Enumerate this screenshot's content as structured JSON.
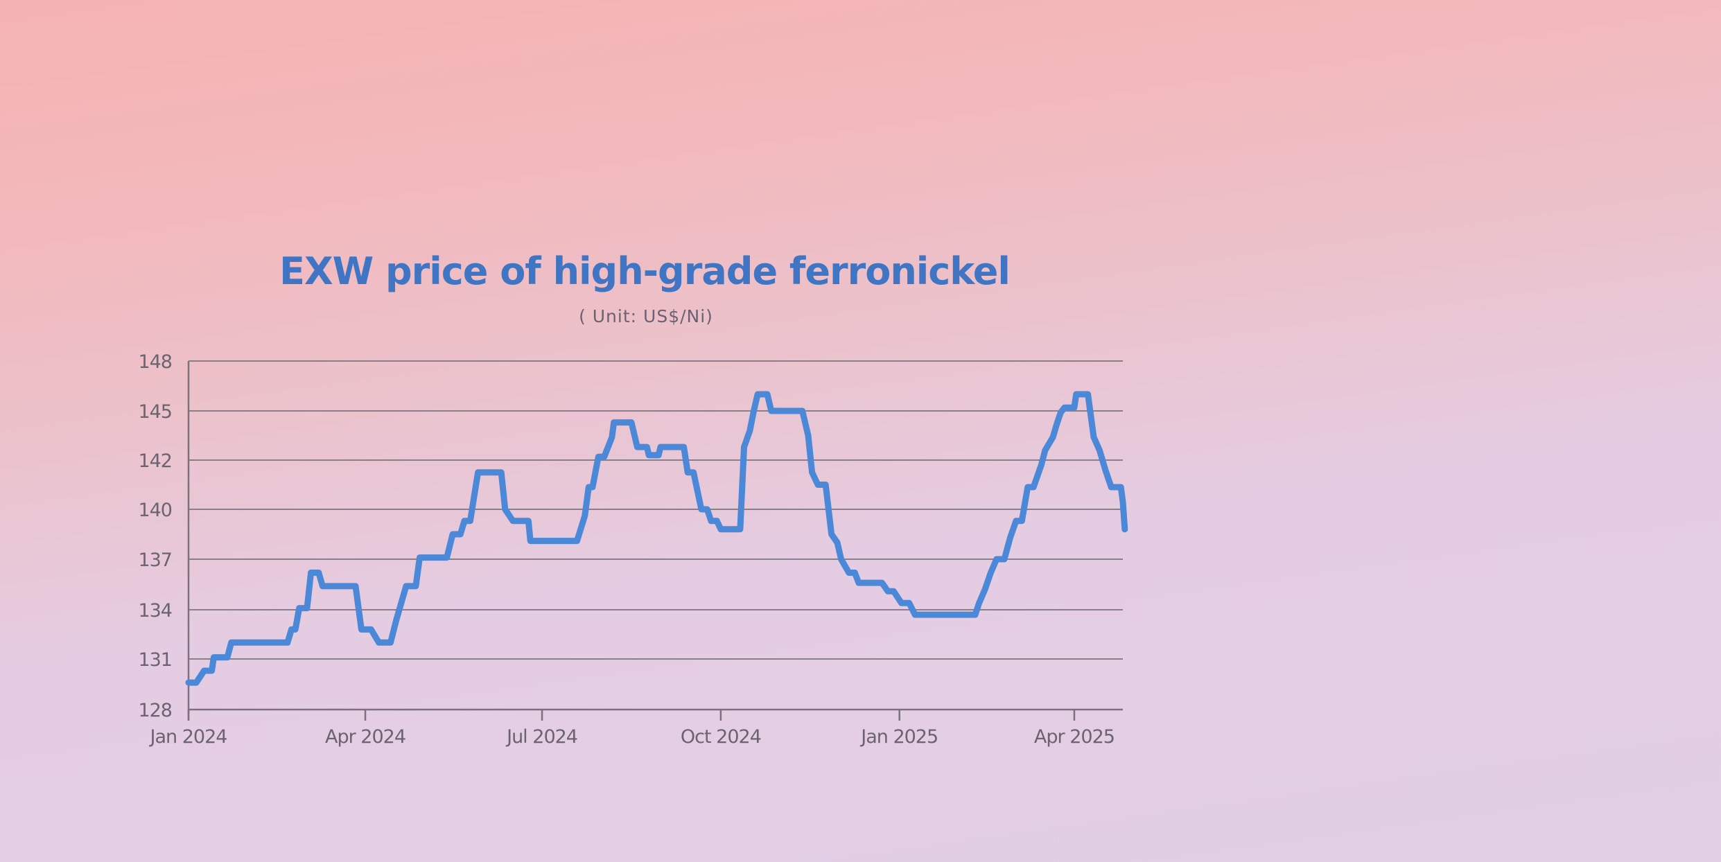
{
  "chart_data": {
    "type": "line",
    "title": "EXW price of high-grade ferronickel",
    "subtitle": "( Unit: US$/Ni)",
    "xlabel": "",
    "ylabel": "",
    "ylim": [
      128,
      148
    ],
    "yticks": [
      128,
      131,
      134,
      137,
      140,
      142,
      145,
      148
    ],
    "xrange": [
      "2024-01-01",
      "2025-04-26"
    ],
    "xticks": [
      {
        "date": "2024-01-01",
        "label": "Jan 2024"
      },
      {
        "date": "2024-04-01",
        "label": "Apr 2024"
      },
      {
        "date": "2024-07-01",
        "label": "Jul 2024"
      },
      {
        "date": "2024-10-01",
        "label": "Oct 2024"
      },
      {
        "date": "2025-01-01",
        "label": "Jan 2025"
      },
      {
        "date": "2025-04-01",
        "label": "Apr 2025"
      }
    ],
    "grid": true,
    "colors": {
      "line": "#4c88d8",
      "title": "#3f75c2"
    },
    "series": [
      {
        "points": [
          [
            "2024-01-01",
            129.6
          ],
          [
            "2024-01-05",
            129.6
          ],
          [
            "2024-01-09",
            130.3
          ],
          [
            "2024-01-13",
            130.3
          ],
          [
            "2024-01-14",
            131.1
          ],
          [
            "2024-01-21",
            131.1
          ],
          [
            "2024-01-23",
            132.0
          ],
          [
            "2024-02-17",
            132.0
          ],
          [
            "2024-02-21",
            132.0
          ],
          [
            "2024-02-23",
            132.8
          ],
          [
            "2024-02-25",
            132.8
          ],
          [
            "2024-02-27",
            134.1
          ],
          [
            "2024-03-02",
            134.1
          ],
          [
            "2024-03-04",
            136.2
          ],
          [
            "2024-03-08",
            136.2
          ],
          [
            "2024-03-10",
            135.4
          ],
          [
            "2024-03-27",
            135.4
          ],
          [
            "2024-03-30",
            132.8
          ],
          [
            "2024-04-04",
            132.8
          ],
          [
            "2024-04-08",
            132.0
          ],
          [
            "2024-04-14",
            132.0
          ],
          [
            "2024-04-17",
            133.4
          ],
          [
            "2024-04-20",
            134.6
          ],
          [
            "2024-04-22",
            135.4
          ],
          [
            "2024-04-27",
            135.4
          ],
          [
            "2024-04-29",
            137.1
          ],
          [
            "2024-05-13",
            137.1
          ],
          [
            "2024-05-16",
            138.5
          ],
          [
            "2024-05-20",
            138.5
          ],
          [
            "2024-05-22",
            139.3
          ],
          [
            "2024-05-25",
            139.3
          ],
          [
            "2024-05-29",
            141.5
          ],
          [
            "2024-06-10",
            141.5
          ],
          [
            "2024-06-12",
            140.0
          ],
          [
            "2024-06-16",
            139.3
          ],
          [
            "2024-06-24",
            139.3
          ],
          [
            "2024-06-25",
            138.1
          ],
          [
            "2024-07-19",
            138.1
          ],
          [
            "2024-07-23",
            139.6
          ],
          [
            "2024-07-25",
            140.9
          ],
          [
            "2024-07-27",
            140.9
          ],
          [
            "2024-07-30",
            142.2
          ],
          [
            "2024-08-02",
            142.2
          ],
          [
            "2024-08-06",
            143.4
          ],
          [
            "2024-08-07",
            144.3
          ],
          [
            "2024-08-16",
            144.3
          ],
          [
            "2024-08-19",
            142.8
          ],
          [
            "2024-08-24",
            142.8
          ],
          [
            "2024-08-25",
            142.3
          ],
          [
            "2024-08-30",
            142.3
          ],
          [
            "2024-08-31",
            142.8
          ],
          [
            "2024-09-12",
            142.8
          ],
          [
            "2024-09-14",
            141.5
          ],
          [
            "2024-09-17",
            141.5
          ],
          [
            "2024-09-21",
            140.0
          ],
          [
            "2024-09-24",
            140.0
          ],
          [
            "2024-09-26",
            139.3
          ],
          [
            "2024-09-29",
            139.3
          ],
          [
            "2024-10-01",
            138.8
          ],
          [
            "2024-10-11",
            138.8
          ],
          [
            "2024-10-13",
            142.8
          ],
          [
            "2024-10-16",
            143.8
          ],
          [
            "2024-10-18",
            145.0
          ],
          [
            "2024-10-20",
            146.0
          ],
          [
            "2024-10-25",
            146.0
          ],
          [
            "2024-10-27",
            145.0
          ],
          [
            "2024-11-12",
            145.0
          ],
          [
            "2024-11-15",
            143.5
          ],
          [
            "2024-11-17",
            141.5
          ],
          [
            "2024-11-20",
            141.0
          ],
          [
            "2024-11-24",
            141.0
          ],
          [
            "2024-11-27",
            138.5
          ],
          [
            "2024-11-30",
            138.0
          ],
          [
            "2024-12-02",
            137.0
          ],
          [
            "2024-12-06",
            136.2
          ],
          [
            "2024-12-09",
            136.2
          ],
          [
            "2024-12-11",
            135.6
          ],
          [
            "2024-12-23",
            135.6
          ],
          [
            "2024-12-26",
            135.1
          ],
          [
            "2024-12-29",
            135.1
          ],
          [
            "2025-01-02",
            134.4
          ],
          [
            "2025-01-06",
            134.4
          ],
          [
            "2025-01-09",
            133.7
          ],
          [
            "2025-02-09",
            133.7
          ],
          [
            "2025-02-11",
            134.4
          ],
          [
            "2025-02-14",
            135.2
          ],
          [
            "2025-02-17",
            136.2
          ],
          [
            "2025-02-20",
            137.0
          ],
          [
            "2025-02-24",
            137.0
          ],
          [
            "2025-02-27",
            138.3
          ],
          [
            "2025-03-02",
            139.3
          ],
          [
            "2025-03-05",
            139.3
          ],
          [
            "2025-03-08",
            140.9
          ],
          [
            "2025-03-11",
            140.9
          ],
          [
            "2025-03-15",
            141.8
          ],
          [
            "2025-03-17",
            142.6
          ],
          [
            "2025-03-21",
            143.4
          ],
          [
            "2025-03-23",
            144.2
          ],
          [
            "2025-03-25",
            144.9
          ],
          [
            "2025-03-27",
            145.2
          ],
          [
            "2025-04-01",
            145.2
          ],
          [
            "2025-04-02",
            146.0
          ],
          [
            "2025-04-08",
            146.0
          ],
          [
            "2025-04-11",
            143.4
          ],
          [
            "2025-04-14",
            142.6
          ],
          [
            "2025-04-17",
            141.6
          ],
          [
            "2025-04-20",
            140.9
          ],
          [
            "2025-04-25",
            140.9
          ],
          [
            "2025-04-26",
            140.3
          ],
          [
            "2025-04-27",
            138.8
          ]
        ]
      }
    ]
  }
}
